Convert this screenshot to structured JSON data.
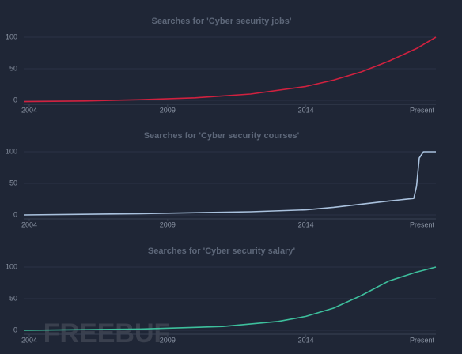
{
  "chart_data": [
    {
      "type": "line",
      "title": "Searches for 'Cyber security jobs'",
      "x": [
        2003.8,
        2006,
        2008,
        2010,
        2012,
        2014,
        2015,
        2016,
        2017,
        2018,
        2018.7
      ],
      "series": [
        {
          "name": "Cyber security jobs",
          "color": "#d0213f",
          "values": [
            -2,
            -1,
            1,
            4,
            10,
            22,
            32,
            45,
            62,
            82,
            100
          ]
        }
      ],
      "xlim": [
        2003.8,
        2018.7
      ],
      "xticks": [
        2004,
        2009,
        2014,
        {
          "value": 2018.2,
          "label": "Present"
        }
      ],
      "ylim": [
        0,
        100
      ],
      "yticks": [
        0,
        50,
        100
      ],
      "grid": true
    },
    {
      "type": "line",
      "title": "Searches for 'Cyber security courses'",
      "x": [
        2003.8,
        2008,
        2012,
        2014,
        2015,
        2016,
        2017,
        2017.9,
        2018,
        2018.1,
        2018.25,
        2018.7
      ],
      "series": [
        {
          "name": "Cyber security courses",
          "color": "#a9c1dd",
          "values": [
            0,
            2,
            5,
            8,
            12,
            17,
            22,
            26,
            45,
            90,
            100,
            100
          ]
        }
      ],
      "xlim": [
        2003.8,
        2018.7
      ],
      "xticks": [
        2004,
        2009,
        2014,
        {
          "value": 2018.2,
          "label": "Present"
        }
      ],
      "ylim": [
        0,
        100
      ],
      "yticks": [
        0,
        50,
        100
      ],
      "grid": true
    },
    {
      "type": "line",
      "title": "Searches for 'Cyber security salary'",
      "x": [
        2003.8,
        2008,
        2011,
        2013,
        2014,
        2015,
        2016,
        2017,
        2018,
        2018.7
      ],
      "series": [
        {
          "name": "Cyber security salary",
          "color": "#3dbf9c",
          "values": [
            0,
            2,
            6,
            14,
            22,
            35,
            55,
            78,
            92,
            100
          ]
        }
      ],
      "xlim": [
        2003.8,
        2018.7
      ],
      "xticks": [
        2004,
        2009,
        2014,
        {
          "value": 2018.2,
          "label": "Present"
        }
      ],
      "ylim": [
        0,
        100
      ],
      "yticks": [
        0,
        50,
        100
      ],
      "grid": true
    }
  ],
  "watermark": "FREEBUF"
}
